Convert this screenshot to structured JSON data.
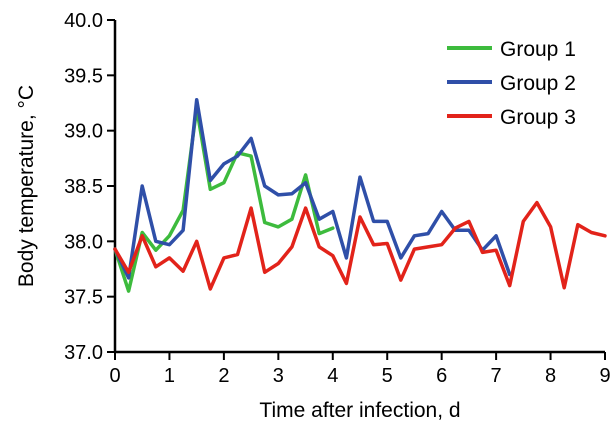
{
  "chart_data": {
    "type": "line",
    "title": "",
    "xlabel": "Time after infection, d",
    "ylabel": "Body temperature, °C",
    "xlim": [
      0,
      9
    ],
    "ylim": [
      37.0,
      40.0
    ],
    "xticks": [
      "0",
      "1",
      "2",
      "3",
      "4",
      "5",
      "6",
      "7",
      "8",
      "9"
    ],
    "yticks": [
      "37.0",
      "37.5",
      "38.0",
      "38.5",
      "39.0",
      "39.5",
      "40.0"
    ],
    "grid": false,
    "legend_position": "top-right",
    "series": [
      {
        "name": "Group 1",
        "color": "#3dbb3d",
        "x": [
          0,
          0.25,
          0.5,
          0.75,
          1,
          1.25,
          1.5,
          1.75,
          2,
          2.25,
          2.5,
          2.75,
          3,
          3.25,
          3.5,
          3.75,
          4
        ],
        "y": [
          37.93,
          37.55,
          38.08,
          37.92,
          38.05,
          38.28,
          39.2,
          38.47,
          38.53,
          38.8,
          38.77,
          38.17,
          38.13,
          38.2,
          38.6,
          38.07,
          38.12
        ]
      },
      {
        "name": "Group 2",
        "color": "#2f4fa8",
        "x": [
          0,
          0.25,
          0.5,
          0.75,
          1,
          1.25,
          1.5,
          1.75,
          2,
          2.25,
          2.5,
          2.75,
          3,
          3.25,
          3.5,
          3.75,
          4,
          4.25,
          4.5,
          4.75,
          5,
          5.25,
          5.5,
          5.75,
          6,
          6.25,
          6.5,
          6.75,
          7,
          7.25
        ],
        "y": [
          37.93,
          37.67,
          38.5,
          38.0,
          37.97,
          38.1,
          39.28,
          38.55,
          38.7,
          38.77,
          38.93,
          38.5,
          38.42,
          38.43,
          38.53,
          38.2,
          38.27,
          37.85,
          38.58,
          38.18,
          38.18,
          37.85,
          38.05,
          38.07,
          38.27,
          38.1,
          38.1,
          37.92,
          38.05,
          37.7
        ]
      },
      {
        "name": "Group 3",
        "color": "#e2231a",
        "x": [
          0,
          0.25,
          0.5,
          0.75,
          1,
          1.25,
          1.5,
          1.75,
          2,
          2.25,
          2.5,
          2.75,
          3,
          3.25,
          3.5,
          3.75,
          4,
          4.25,
          4.5,
          4.75,
          5,
          5.25,
          5.5,
          5.75,
          6,
          6.25,
          6.5,
          6.75,
          7,
          7.25,
          7.5,
          7.75,
          8,
          8.25,
          8.5,
          8.75,
          9
        ],
        "y": [
          37.93,
          37.72,
          38.05,
          37.77,
          37.85,
          37.73,
          38.0,
          37.57,
          37.85,
          37.88,
          38.3,
          37.72,
          37.8,
          37.95,
          38.3,
          37.95,
          37.87,
          37.62,
          38.22,
          37.97,
          37.98,
          37.65,
          37.93,
          37.95,
          37.97,
          38.12,
          38.18,
          37.9,
          37.92,
          37.6,
          38.18,
          38.35,
          38.13,
          37.58,
          38.15,
          38.08,
          38.05
        ]
      }
    ]
  }
}
